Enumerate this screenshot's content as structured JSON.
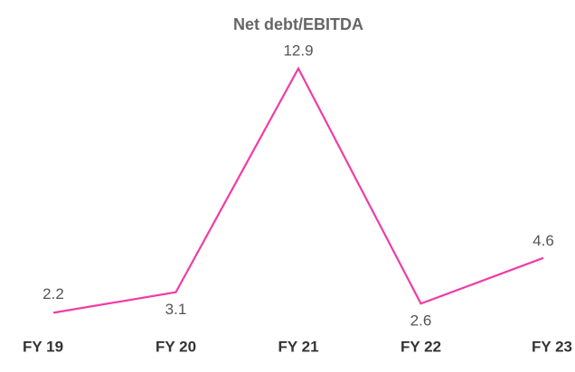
{
  "chart_data": {
    "type": "line",
    "title": "Net debt/EBITDA",
    "categories": [
      "FY 19",
      "FY 20",
      "FY 21",
      "FY 22",
      "FY 23"
    ],
    "values": [
      2.2,
      3.1,
      12.9,
      2.6,
      4.6
    ],
    "color": "#f03ca6",
    "ylim": [
      0,
      14
    ]
  }
}
